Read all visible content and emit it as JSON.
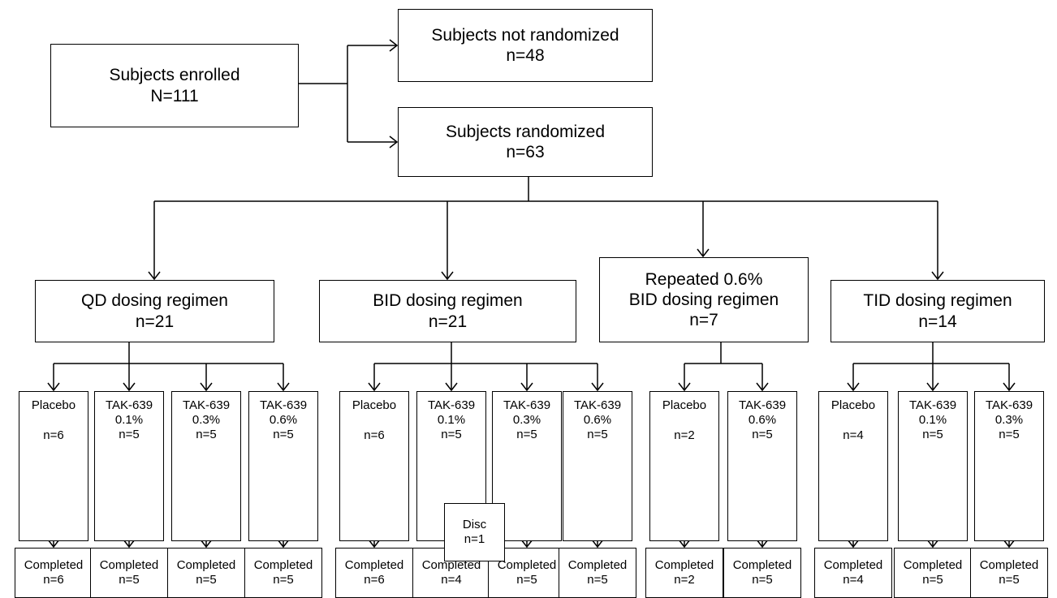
{
  "enrolled": {
    "label": "Subjects enrolled",
    "n": "N=111"
  },
  "not_randomized": {
    "label": "Subjects not randomized",
    "n": "n=48"
  },
  "randomized": {
    "label": "Subjects randomized",
    "n": "n=63"
  },
  "regimens": [
    {
      "lines": [
        "QD dosing regimen"
      ],
      "n": "n=21",
      "arms": [
        {
          "line1": "Placebo",
          "line2": "",
          "n": "n=6",
          "completed": "Completed",
          "completed_n": "n=6"
        },
        {
          "line1": "TAK-639",
          "line2": "0.1%",
          "n": "n=5",
          "completed": "Completed",
          "completed_n": "n=5"
        },
        {
          "line1": "TAK-639",
          "line2": "0.3%",
          "n": "n=5",
          "completed": "Completed",
          "completed_n": "n=5"
        },
        {
          "line1": "TAK-639",
          "line2": "0.6%",
          "n": "n=5",
          "completed": "Completed",
          "completed_n": "n=5"
        }
      ]
    },
    {
      "lines": [
        "BID dosing regimen"
      ],
      "n": "n=21",
      "arms": [
        {
          "line1": "Placebo",
          "line2": "",
          "n": "n=6",
          "completed": "Completed",
          "completed_n": "n=6"
        },
        {
          "line1": "TAK-639",
          "line2": "0.1%",
          "n": "n=5",
          "completed": "Completed",
          "completed_n": "n=4"
        },
        {
          "line1": "TAK-639",
          "line2": "0.3%",
          "n": "n=5",
          "completed": "Completed",
          "completed_n": "n=5"
        },
        {
          "line1": "TAK-639",
          "line2": "0.6%",
          "n": "n=5",
          "completed": "Completed",
          "completed_n": "n=5"
        }
      ]
    },
    {
      "lines": [
        "Repeated 0.6%",
        "BID dosing regimen"
      ],
      "n": "n=7",
      "arms": [
        {
          "line1": "Placebo",
          "line2": "",
          "n": "n=2",
          "completed": "Completed",
          "completed_n": "n=2"
        },
        {
          "line1": "TAK-639",
          "line2": "0.6%",
          "n": "n=5",
          "completed": "Completed",
          "completed_n": "n=5"
        }
      ]
    },
    {
      "lines": [
        "TID dosing regimen"
      ],
      "n": "n=14",
      "arms": [
        {
          "line1": "Placebo",
          "line2": "",
          "n": "n=4",
          "completed": "Completed",
          "completed_n": "n=4"
        },
        {
          "line1": "TAK-639",
          "line2": "0.1%",
          "n": "n=5",
          "completed": "Completed",
          "completed_n": "n=5"
        },
        {
          "line1": "TAK-639",
          "line2": "0.3%",
          "n": "n=5",
          "completed": "Completed",
          "completed_n": "n=5"
        }
      ]
    }
  ],
  "discontinued": {
    "label": "Disc",
    "n": "n=1"
  }
}
